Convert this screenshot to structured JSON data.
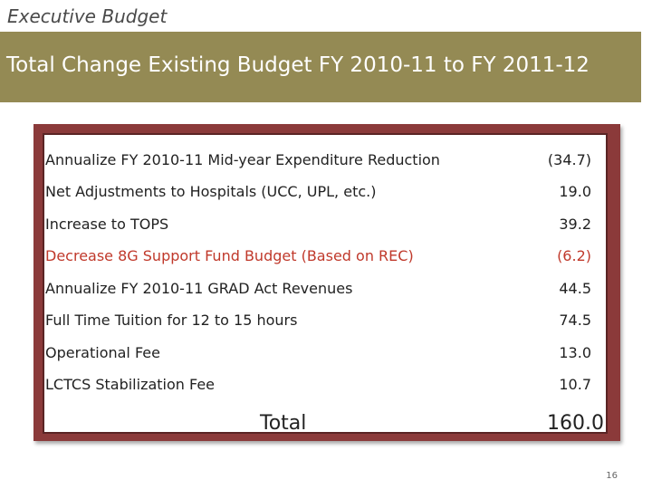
{
  "header": "Executive Budget",
  "title": "Total Change Existing Budget FY 2010-11 to FY 2011-12",
  "items": [
    {
      "label": "Annualize FY 2010-11 Mid-year Expenditure Reduction",
      "value": "(34.7)",
      "color": "#222222"
    },
    {
      "label": "Net Adjustments to Hospitals (UCC, UPL, etc.)",
      "value": "19.0",
      "color": "#222222"
    },
    {
      "label": "Increase to TOPS",
      "value": "39.2",
      "color": "#222222"
    },
    {
      "label": "Decrease 8G Support Fund Budget (Based on REC)",
      "value": "(6.2)",
      "color": "#c0392b"
    },
    {
      "label": "Annualize FY 2010-11 GRAD Act Revenues",
      "value": "44.5",
      "color": "#222222"
    },
    {
      "label": "Full Time Tuition for 12 to 15 hours",
      "value": "74.5",
      "color": "#222222"
    },
    {
      "label": "Operational Fee",
      "value": "13.0",
      "color": "#222222"
    },
    {
      "label": "LCTCS Stabilization Fee",
      "value": "10.7",
      "color": "#222222"
    }
  ],
  "total": {
    "label": "Total",
    "value": "160.0"
  },
  "page_number": "16",
  "colors": {
    "title_bar": "#948a54",
    "frame": "#8b3a3a",
    "highlight_text": "#c0392b"
  }
}
